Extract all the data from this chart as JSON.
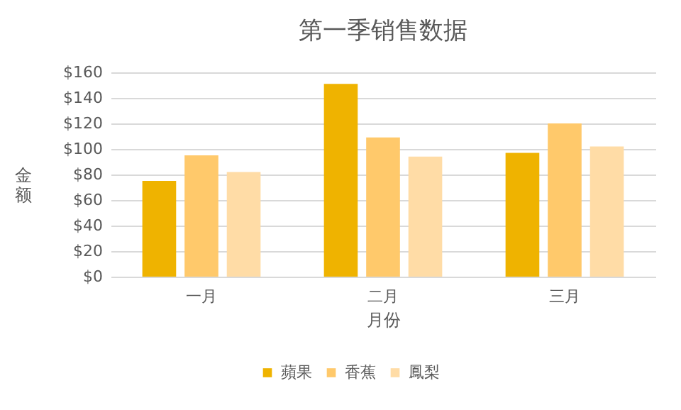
{
  "chart_data": {
    "type": "bar",
    "title": "第一季销售数据",
    "xlabel": "月份",
    "ylabel": "金额",
    "categories": [
      "一月",
      "二月",
      "三月"
    ],
    "series": [
      {
        "name": "蘋果",
        "color": "#efb300",
        "values": [
          75,
          151,
          97
        ]
      },
      {
        "name": "香蕉",
        "color": "#ffc96b",
        "values": [
          95,
          109,
          120
        ]
      },
      {
        "name": "鳳梨",
        "color": "#ffdca6",
        "values": [
          82,
          94,
          102
        ]
      }
    ],
    "ylim": [
      0,
      160
    ],
    "yticks": [
      {
        "value": 0,
        "label": "$0"
      },
      {
        "value": 20,
        "label": "$20"
      },
      {
        "value": 40,
        "label": "$40"
      },
      {
        "value": 60,
        "label": "$60"
      },
      {
        "value": 80,
        "label": "$80"
      },
      {
        "value": 100,
        "label": "$100"
      },
      {
        "value": 120,
        "label": "$120"
      },
      {
        "value": 140,
        "label": "$140"
      },
      {
        "value": 160,
        "label": "$160"
      }
    ],
    "grid": "y",
    "legend": "bottom"
  }
}
